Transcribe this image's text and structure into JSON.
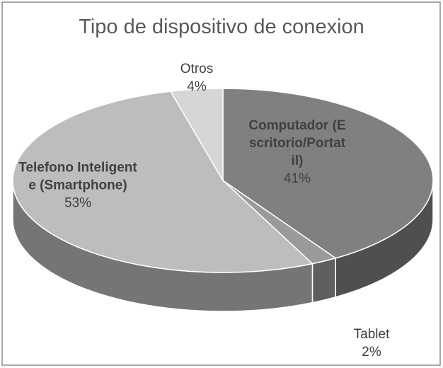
{
  "chart_data": {
    "type": "pie3d",
    "title": "Tipo de dispositivo de conexion",
    "categories": [
      "Computador (Escritorio/Portatil)",
      "Tablet",
      "Telefono Inteligente (Smartphone)",
      "Otros"
    ],
    "values": [
      41,
      2,
      53,
      4
    ],
    "value_labels": [
      "41%",
      "2%",
      "53%",
      "4%"
    ],
    "colors": [
      "#808080",
      "#9a9a9a",
      "#bdbdbd",
      "#d6d6d6"
    ]
  }
}
